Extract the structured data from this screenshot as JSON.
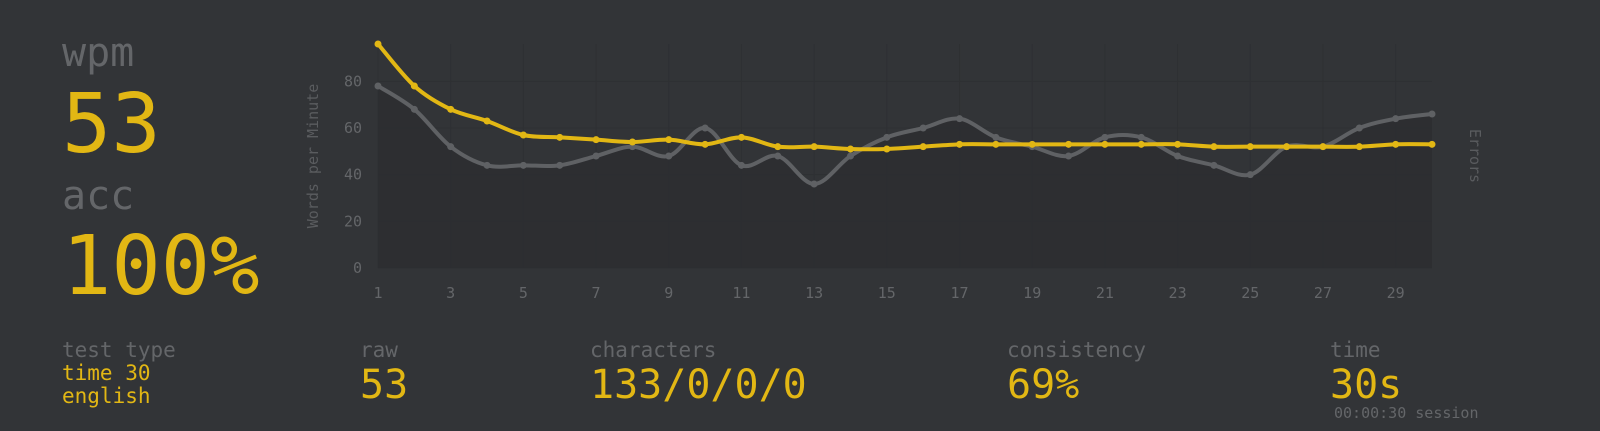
{
  "stats": {
    "wpm_label": "wpm",
    "wpm_value": "53",
    "acc_label": "acc",
    "acc_value": "100%",
    "test_type_label": "test type",
    "test_type_line1": "time 30",
    "test_type_line2": "english",
    "raw_label": "raw",
    "raw_value": "53",
    "characters_label": "characters",
    "characters_value": "133/0/0/0",
    "consistency_label": "consistency",
    "consistency_value": "69%",
    "time_label": "time",
    "time_value": "30s",
    "session_text": "00:00:30 session"
  },
  "colors": {
    "background": "#323437",
    "accent": "#e2b714",
    "sub": "#646669",
    "raw_line": "#5f6164"
  },
  "chart_data": {
    "type": "line",
    "ylabel": "Words per Minute",
    "y2label": "Errors",
    "ylim": [
      0,
      96
    ],
    "yticks": [
      0,
      20,
      40,
      60,
      80
    ],
    "xlim": [
      1,
      30
    ],
    "xticks": [
      1,
      3,
      5,
      7,
      9,
      11,
      13,
      15,
      17,
      19,
      21,
      23,
      25,
      27,
      29
    ],
    "x": [
      1,
      2,
      3,
      4,
      5,
      6,
      7,
      8,
      9,
      10,
      11,
      12,
      13,
      14,
      15,
      16,
      17,
      18,
      19,
      20,
      21,
      22,
      23,
      24,
      25,
      26,
      27,
      28,
      29,
      30
    ],
    "series": [
      {
        "values": [
          96,
          78,
          68,
          63,
          57,
          56,
          55,
          54,
          55,
          53,
          56,
          52,
          52,
          51,
          51,
          52,
          53,
          53,
          53,
          53,
          53,
          53,
          53,
          52,
          52,
          52,
          52,
          52,
          53,
          53
        ]
      },
      {
        "values": [
          78,
          68,
          52,
          44,
          44,
          44,
          48,
          52,
          48,
          60,
          44,
          48,
          36,
          48,
          56,
          60,
          64,
          56,
          52,
          48,
          56,
          56,
          48,
          44,
          40,
          52,
          52,
          60,
          64,
          66
        ]
      }
    ]
  }
}
